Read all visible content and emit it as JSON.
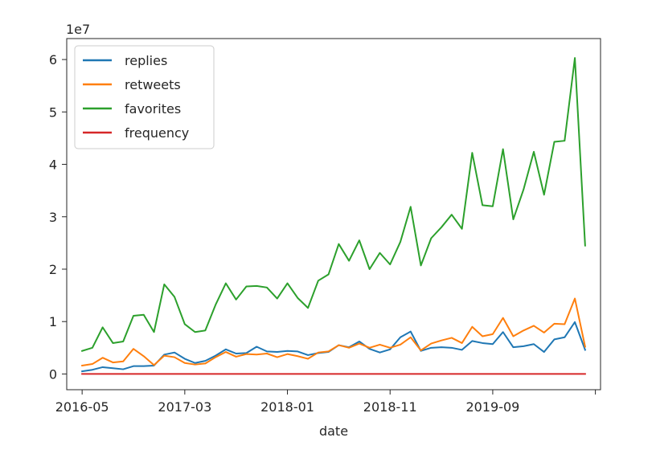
{
  "chart_data": {
    "type": "line",
    "title": "",
    "xlabel": "date",
    "ylabel": "",
    "y_offset_label": "1e7",
    "ylim": [
      -3000000,
      64000000
    ],
    "y_ticks": [
      0,
      10000000,
      20000000,
      30000000,
      40000000,
      50000000,
      60000000
    ],
    "y_tick_labels": [
      "0",
      "1",
      "2",
      "3",
      "4",
      "5",
      "6"
    ],
    "xlim": [
      -1.5,
      50.5
    ],
    "x_ticks": [
      0,
      10,
      20,
      30,
      40,
      50
    ],
    "x_tick_labels": [
      "2016-05",
      "2017-03",
      "2018-01",
      "2018-11",
      "2019-09",
      ""
    ],
    "grid": false,
    "legend_position": "upper-left",
    "x": [
      "2016-05",
      "2016-06",
      "2016-07",
      "2016-08",
      "2016-09",
      "2016-10",
      "2016-11",
      "2016-12",
      "2017-01",
      "2017-02",
      "2017-03",
      "2017-04",
      "2017-05",
      "2017-06",
      "2017-07",
      "2017-08",
      "2017-09",
      "2017-10",
      "2017-11",
      "2017-12",
      "2018-01",
      "2018-02",
      "2018-03",
      "2018-04",
      "2018-05",
      "2018-06",
      "2018-07",
      "2018-08",
      "2018-09",
      "2018-10",
      "2018-11",
      "2018-12",
      "2019-01",
      "2019-02",
      "2019-03",
      "2019-04",
      "2019-05",
      "2019-06",
      "2019-07",
      "2019-08",
      "2019-09",
      "2019-10",
      "2019-11",
      "2019-12",
      "2020-01",
      "2020-02",
      "2020-03",
      "2020-04",
      "2020-05",
      "2020-06"
    ],
    "series": [
      {
        "name": "replies",
        "color": "#1f77b4",
        "values": [
          500000,
          800000,
          1300000,
          1100000,
          900000,
          1500000,
          1500000,
          1600000,
          3700000,
          4100000,
          2900000,
          2100000,
          2500000,
          3500000,
          4700000,
          3900000,
          4000000,
          5200000,
          4300000,
          4200000,
          4400000,
          4300000,
          3600000,
          4000000,
          4200000,
          5500000,
          5100000,
          6200000,
          4800000,
          4100000,
          4700000,
          7000000,
          8100000,
          4400000,
          5000000,
          5100000,
          5000000,
          4600000,
          6300000,
          5900000,
          5700000,
          8000000,
          5100000,
          5300000,
          5700000,
          4200000,
          6600000,
          7000000,
          9900000,
          4600000
        ]
      },
      {
        "name": "retweets",
        "color": "#ff7f0e",
        "values": [
          1600000,
          1900000,
          3100000,
          2200000,
          2400000,
          4800000,
          3400000,
          1700000,
          3500000,
          3200000,
          2100000,
          1800000,
          2000000,
          3200000,
          4200000,
          3300000,
          3800000,
          3700000,
          3900000,
          3200000,
          3800000,
          3400000,
          2900000,
          4100000,
          4300000,
          5500000,
          5000000,
          5800000,
          5000000,
          5600000,
          5000000,
          5600000,
          7000000,
          4500000,
          5800000,
          6400000,
          6900000,
          5900000,
          9000000,
          7200000,
          7600000,
          10700000,
          7200000,
          8300000,
          9200000,
          7900000,
          9600000,
          9500000,
          14400000,
          5200000
        ]
      },
      {
        "name": "favorites",
        "color": "#2ca02c",
        "values": [
          4400000,
          5000000,
          8900000,
          5900000,
          6200000,
          11100000,
          11300000,
          8000000,
          17100000,
          14700000,
          9500000,
          8000000,
          8300000,
          13200000,
          17300000,
          14200000,
          16700000,
          16800000,
          16500000,
          14400000,
          17300000,
          14500000,
          12600000,
          17800000,
          19000000,
          24800000,
          21600000,
          25500000,
          20000000,
          23100000,
          20900000,
          25200000,
          31900000,
          20700000,
          25900000,
          28000000,
          30400000,
          27700000,
          42200000,
          32200000,
          32000000,
          42900000,
          29500000,
          35200000,
          42400000,
          34200000,
          44300000,
          44500000,
          60300000,
          24500000
        ]
      },
      {
        "name": "frequency",
        "color": "#d62728",
        "values": [
          100,
          120,
          150,
          130,
          120,
          160,
          150,
          140,
          170,
          160,
          150,
          140,
          145,
          160,
          170,
          160,
          165,
          170,
          165,
          160,
          170,
          165,
          160,
          170,
          175,
          180,
          178,
          182,
          176,
          180,
          178,
          182,
          190,
          180,
          185,
          188,
          190,
          186,
          195,
          190,
          188,
          200,
          190,
          195,
          198,
          194,
          200,
          202,
          210,
          190
        ]
      }
    ]
  }
}
